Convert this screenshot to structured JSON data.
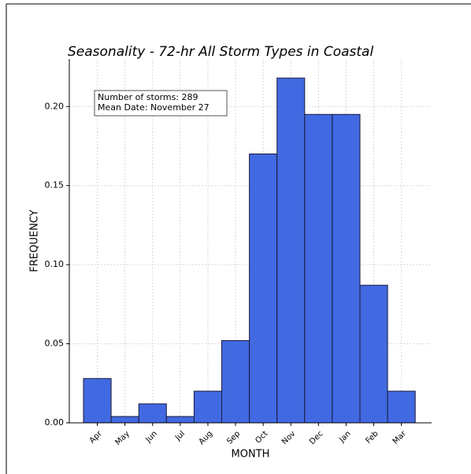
{
  "chart_data": {
    "type": "bar",
    "title": "Seasonality - 72-hr All Storm Types in Coastal",
    "xlabel": "MONTH",
    "ylabel": "FREQUENCY",
    "categories": [
      "Apr",
      "May",
      "Jun",
      "Jul",
      "Aug",
      "Sep",
      "Oct",
      "Nov",
      "Dec",
      "Jan",
      "Feb",
      "Mar"
    ],
    "values": [
      0.028,
      0.004,
      0.012,
      0.004,
      0.02,
      0.052,
      0.17,
      0.218,
      0.195,
      0.195,
      0.087,
      0.02
    ],
    "color": "#4169e1",
    "ylim": [
      0,
      0.23
    ],
    "yticks": [
      {
        "value": 0,
        "label": "0.00"
      },
      {
        "value": 0.05,
        "label": "0.05"
      },
      {
        "value": 0.1,
        "label": "0.10"
      },
      {
        "value": 0.15,
        "label": "0.15"
      },
      {
        "value": 0.2,
        "label": "0.20"
      }
    ],
    "grid": true,
    "annotations": [
      "Number of storms: 289",
      "Mean Date: November 27"
    ]
  }
}
